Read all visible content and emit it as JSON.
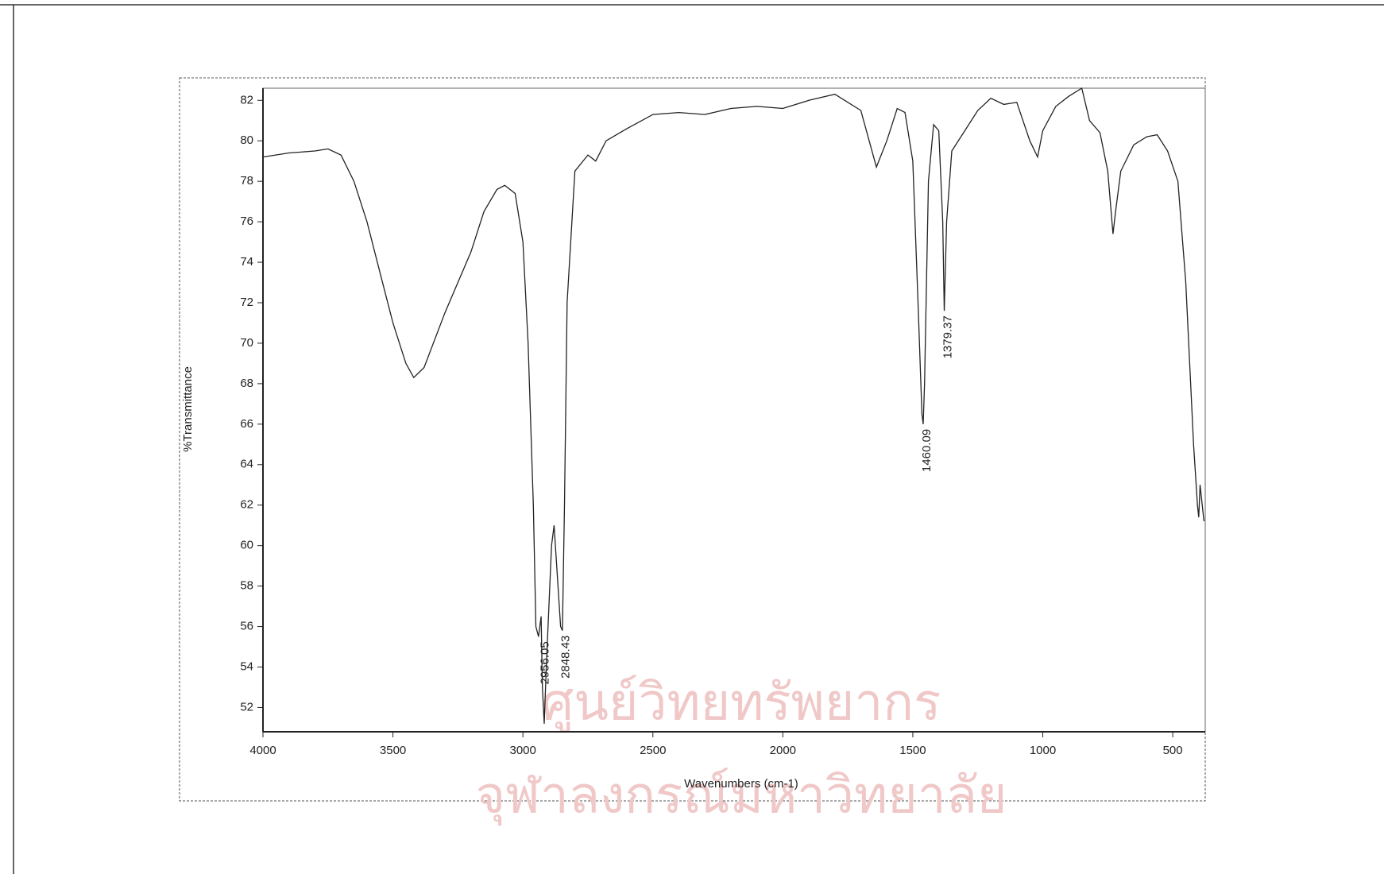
{
  "chart_data": {
    "type": "line",
    "xlabel": "Wavenumbers (cm-1)",
    "ylabel": "%Transmittance",
    "xlim": [
      4000,
      375
    ],
    "ylim": [
      50.8,
      82.6
    ],
    "xticks": [
      4000,
      3500,
      3000,
      2500,
      2000,
      1500,
      1000,
      500
    ],
    "yticks": [
      52,
      54,
      56,
      58,
      60,
      62,
      64,
      66,
      68,
      70,
      72,
      74,
      76,
      78,
      80,
      82
    ],
    "series": [
      {
        "color": "#222222",
        "x": [
          4000,
          3900,
          3800,
          3750,
          3700,
          3650,
          3600,
          3550,
          3500,
          3450,
          3420,
          3380,
          3300,
          3200,
          3150,
          3100,
          3070,
          3030,
          3000,
          2980,
          2960,
          2950,
          2940,
          2930,
          2925,
          2918,
          2910,
          2890,
          2880,
          2870,
          2855,
          2848,
          2840,
          2830,
          2800,
          2750,
          2720,
          2680,
          2600,
          2500,
          2400,
          2300,
          2200,
          2100,
          2000,
          1900,
          1800,
          1700,
          1640,
          1600,
          1560,
          1530,
          1500,
          1480,
          1465,
          1460,
          1455,
          1440,
          1420,
          1400,
          1385,
          1379,
          1370,
          1350,
          1300,
          1250,
          1200,
          1150,
          1100,
          1050,
          1020,
          1000,
          950,
          900,
          850,
          820,
          780,
          750,
          730,
          720,
          700,
          650,
          600,
          560,
          520,
          480,
          450,
          420,
          405,
          400,
          395,
          380
        ],
        "values": [
          79.2,
          79.4,
          79.5,
          79.6,
          79.3,
          78,
          76,
          73.5,
          71,
          69,
          68.3,
          68.8,
          71.5,
          74.5,
          76.5,
          77.6,
          77.8,
          77.4,
          75,
          70,
          62,
          56,
          55.5,
          56.5,
          53,
          51.2,
          54,
          60,
          61,
          59,
          56,
          55.8,
          62,
          72,
          78.5,
          79.3,
          79,
          80,
          80.6,
          81.3,
          81.4,
          81.3,
          81.6,
          81.7,
          81.6,
          82,
          82.3,
          81.5,
          78.7,
          80,
          81.6,
          81.4,
          79,
          72,
          66.5,
          66,
          68,
          78,
          80.8,
          80.5,
          76,
          71.6,
          76,
          79.5,
          80.5,
          81.5,
          82.1,
          81.8,
          81.9,
          80,
          79.2,
          80.5,
          81.7,
          82.2,
          82.6,
          81,
          80.4,
          78.5,
          75.4,
          76.5,
          78.5,
          79.8,
          80.2,
          80.3,
          79.5,
          78,
          73,
          65,
          62,
          61.4,
          63,
          61.2
        ]
      }
    ],
    "annotations": [
      {
        "label": "2956.05",
        "x": 2929,
        "y": 55.5
      },
      {
        "label": "2848.43",
        "x": 2848.43,
        "y": 55.8
      },
      {
        "label": "1460.09",
        "x": 1460.09,
        "y": 66
      },
      {
        "label": "1379.37",
        "x": 1379.37,
        "y": 71.6
      }
    ],
    "watermark": [
      "ศูนย์วิทยทรัพยากร",
      "จุฬาลงกรณ์มหาวิทยาลัย"
    ]
  }
}
